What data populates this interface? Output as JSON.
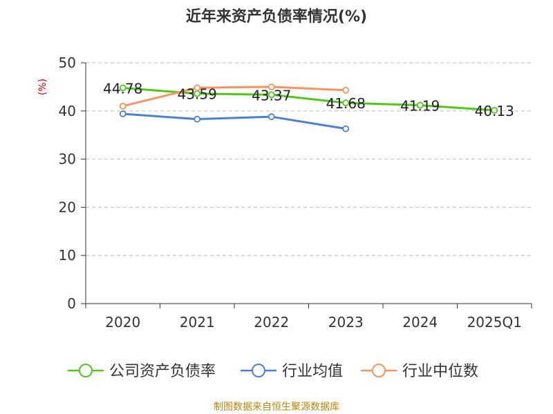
{
  "page": {
    "source": "制图数据来自恒生聚源数据库"
  },
  "colors": {
    "source_text": "#b8860b",
    "axis": "#333333",
    "grid": "#bbbbbb",
    "ylabel": "#cc0000"
  },
  "chart_data": {
    "type": "line",
    "title": "近年来资产负债率情况(%)",
    "ylabel": "(%)",
    "ylim": [
      0,
      50
    ],
    "yticks": [
      0,
      10,
      20,
      30,
      40,
      50
    ],
    "grid": true,
    "legend_position": "bottom",
    "categories": [
      "2020",
      "2021",
      "2022",
      "2023",
      "2024",
      "2025Q1"
    ],
    "series": [
      {
        "name": "公司资产负债率",
        "color": "#52c41a",
        "values": [
          44.78,
          43.59,
          43.37,
          41.68,
          41.19,
          40.13
        ],
        "labels": [
          "44.78",
          "43.59",
          "43.37",
          "41.68",
          "41.19",
          "40.13"
        ]
      },
      {
        "name": "行业均值",
        "color": "#4a7fd4",
        "values": [
          39.4,
          38.3,
          38.8,
          36.3,
          null,
          null
        ]
      },
      {
        "name": "行业中位数",
        "color": "#f5935e",
        "values": [
          41.0,
          44.8,
          45.0,
          44.3,
          null,
          null
        ]
      }
    ]
  }
}
